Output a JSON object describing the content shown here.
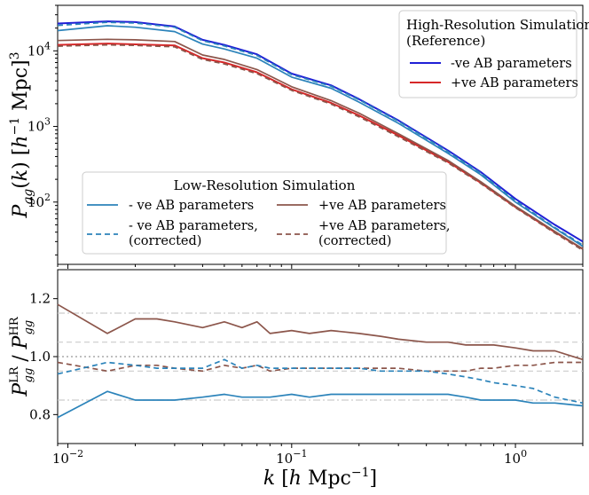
{
  "figure": {
    "background": "#ffffff"
  },
  "chart_data": [
    {
      "type": "line",
      "panel": "top",
      "x_scale": "log",
      "y_scale": "log",
      "xlim": [
        0.009,
        2.0
      ],
      "ylim": [
        15,
        40000
      ],
      "ylabel": "P_gg(k) [h^-1 Mpc]^3",
      "ytick_values": [
        100,
        1000,
        10000
      ],
      "yticks": {
        "t2": "2",
        "t3": "3",
        "t4": "4"
      },
      "ytick_base": "10",
      "grid": false,
      "legend_reference": {
        "placement": "top-right",
        "title_line1": "High-Resolution Simulation",
        "title_line2": "(Reference)",
        "entries": [
          "-ve AB parameters",
          "+ve AB parameters"
        ]
      },
      "legend_lowres": {
        "placement": "lower-left",
        "title": "Low-Resolution Simulation",
        "entries": [
          {
            "line1": "- ve AB parameters",
            "line2": ""
          },
          {
            "line1": "- ve AB parameters,",
            "line2": "(corrected)"
          },
          {
            "line1": "+ve AB parameters",
            "line2": ""
          },
          {
            "line1": "+ve AB parameters,",
            "line2": "(corrected)"
          }
        ]
      },
      "x": [
        0.009,
        0.015,
        0.02,
        0.03,
        0.04,
        0.05,
        0.07,
        0.1,
        0.15,
        0.2,
        0.3,
        0.5,
        0.7,
        1.0,
        1.5,
        2.0
      ],
      "series": [
        {
          "key": "hr_neg",
          "color": "#1f1fd6",
          "dash": "solid",
          "width": 2.0,
          "values": [
            23000,
            24500,
            24000,
            21000,
            14000,
            12000,
            9000,
            5000,
            3500,
            2300,
            1200,
            480,
            250,
            110,
            50,
            30
          ]
        },
        {
          "key": "hr_pos",
          "color": "#d62728",
          "dash": "solid",
          "width": 2.0,
          "values": [
            12000,
            12500,
            12200,
            11800,
            8000,
            7000,
            5200,
            3100,
            2050,
            1400,
            760,
            340,
            180,
            86,
            40,
            24
          ]
        },
        {
          "key": "lr_neg",
          "color": "#2b83ba",
          "dash": "solid",
          "width": 1.7,
          "values": [
            18500,
            21500,
            20500,
            18000,
            12300,
            10600,
            8000,
            4500,
            3200,
            2100,
            1100,
            440,
            230,
            100,
            45,
            26
          ]
        },
        {
          "key": "lr_neg_corr",
          "color": "#2b83ba",
          "dash": "dashed",
          "width": 1.7,
          "values": [
            21700,
            23800,
            23300,
            20500,
            13600,
            11600,
            8700,
            4850,
            3400,
            2250,
            1170,
            465,
            242,
            104,
            46,
            27
          ]
        },
        {
          "key": "lr_pos",
          "color": "#8c564b",
          "dash": "solid",
          "width": 1.7,
          "values": [
            13700,
            14200,
            14000,
            13300,
            8800,
            7700,
            5650,
            3350,
            2200,
            1500,
            800,
            355,
            186,
            88,
            41,
            24
          ]
        },
        {
          "key": "lr_pos_corr",
          "color": "#8c564b",
          "dash": "dashed",
          "width": 1.7,
          "values": [
            11500,
            12000,
            11800,
            11300,
            7700,
            6700,
            5000,
            3000,
            1980,
            1340,
            730,
            330,
            176,
            84,
            39,
            23
          ]
        }
      ]
    },
    {
      "type": "line",
      "panel": "bottom",
      "x_scale": "log",
      "y_scale": "linear",
      "xlim": [
        0.009,
        2.0
      ],
      "ylim": [
        0.7,
        1.3
      ],
      "xlabel": "k [h Mpc^-1]",
      "ylabel": "P_gg^LR / P_gg^HR",
      "xtick_values": [
        0.01,
        0.1,
        1
      ],
      "xticks": {
        "t_m2": "−2",
        "t_m1": "−1",
        "t_0": "0"
      },
      "xtick_base": "10",
      "ytick_values": [
        0.8,
        1.0,
        1.2
      ],
      "yticks": {
        "t08": "0.8",
        "t10": "1.0",
        "t12": "1.2"
      },
      "reference_lines": [
        {
          "y": 1.0,
          "style": "dotted",
          "color": "#999999"
        },
        {
          "y": 0.95,
          "style": "dashed",
          "color": "#cccccc"
        },
        {
          "y": 1.05,
          "style": "dashed",
          "color": "#cccccc"
        },
        {
          "y": 0.85,
          "style": "dashdot",
          "color": "#cccccc"
        },
        {
          "y": 1.15,
          "style": "dashdot",
          "color": "#cccccc"
        }
      ],
      "x": [
        0.009,
        0.015,
        0.02,
        0.025,
        0.03,
        0.04,
        0.05,
        0.06,
        0.07,
        0.08,
        0.1,
        0.12,
        0.15,
        0.2,
        0.25,
        0.3,
        0.4,
        0.5,
        0.6,
        0.7,
        0.8,
        1.0,
        1.2,
        1.5,
        2.0
      ],
      "series": [
        {
          "key": "ratio_pos",
          "color": "#8c564b",
          "dash": "solid",
          "width": 1.7,
          "values": [
            1.18,
            1.08,
            1.13,
            1.13,
            1.12,
            1.1,
            1.12,
            1.1,
            1.12,
            1.08,
            1.09,
            1.08,
            1.09,
            1.08,
            1.07,
            1.06,
            1.05,
            1.05,
            1.04,
            1.04,
            1.04,
            1.03,
            1.02,
            1.02,
            0.99
          ]
        },
        {
          "key": "ratio_pos_corr",
          "color": "#8c564b",
          "dash": "dashed",
          "width": 1.7,
          "values": [
            0.98,
            0.95,
            0.97,
            0.97,
            0.96,
            0.95,
            0.97,
            0.96,
            0.97,
            0.95,
            0.96,
            0.96,
            0.96,
            0.96,
            0.96,
            0.96,
            0.95,
            0.95,
            0.95,
            0.96,
            0.96,
            0.97,
            0.97,
            0.98,
            0.98
          ]
        },
        {
          "key": "ratio_neg_corr",
          "color": "#2b83ba",
          "dash": "dashed",
          "width": 1.7,
          "values": [
            0.94,
            0.98,
            0.97,
            0.96,
            0.96,
            0.96,
            0.99,
            0.96,
            0.97,
            0.96,
            0.96,
            0.96,
            0.96,
            0.96,
            0.95,
            0.95,
            0.95,
            0.94,
            0.93,
            0.92,
            0.91,
            0.9,
            0.89,
            0.86,
            0.84
          ]
        },
        {
          "key": "ratio_neg",
          "color": "#2b83ba",
          "dash": "solid",
          "width": 1.7,
          "values": [
            0.79,
            0.88,
            0.85,
            0.85,
            0.85,
            0.86,
            0.87,
            0.86,
            0.86,
            0.86,
            0.87,
            0.86,
            0.87,
            0.87,
            0.87,
            0.87,
            0.87,
            0.87,
            0.86,
            0.85,
            0.85,
            0.85,
            0.84,
            0.84,
            0.83
          ]
        }
      ]
    }
  ]
}
